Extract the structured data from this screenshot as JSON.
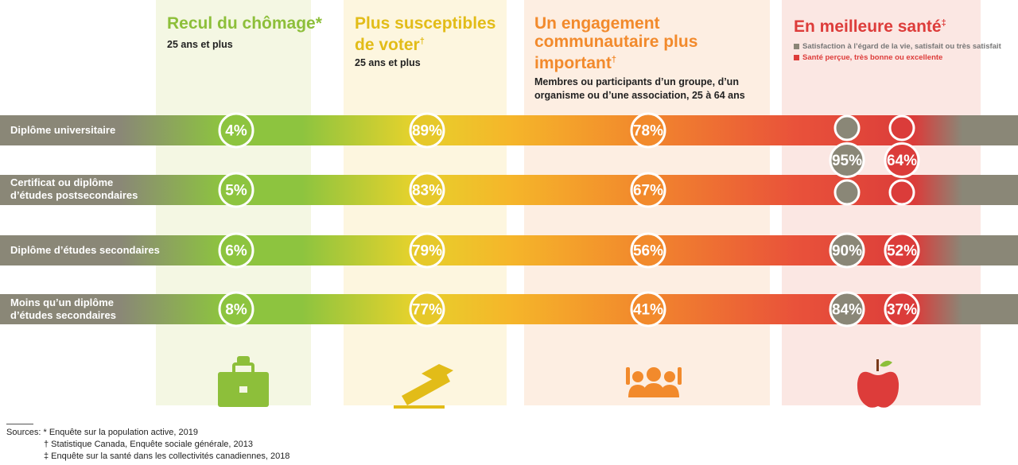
{
  "columns": [
    {
      "title": "Recul du chômage*",
      "title_mark": "",
      "subtitle": "25 ans et plus",
      "color": "#8dbf3a",
      "icon": "briefcase-icon"
    },
    {
      "title": "Plus susceptibles de voter",
      "title_mark": "†",
      "subtitle": "25 ans et plus",
      "color": "#e2bc18",
      "icon": "ballot-box-icon"
    },
    {
      "title": "Un engagement communautaire plus important",
      "title_mark": "†",
      "subtitle": "Membres ou participants d’un groupe, d’un organisme ou d’une association, 25 à 64 ans",
      "color": "#f28a2c",
      "icon": "people-hands-raised-icon"
    },
    {
      "title": "En meilleure santé",
      "title_mark": "‡",
      "subtitle": "",
      "color": "#dd3c3a",
      "icon": "apple-icon"
    }
  ],
  "legend": {
    "life_satisfaction": "Satisfaction à l’égard de la vie, satisfait ou très satisfait",
    "health": "Santé perçue, très bonne ou excellente",
    "life_color": "#8a8576",
    "health_color": "#dd3c3a"
  },
  "chart_data": {
    "type": "table",
    "categories": [
      "Diplôme universitaire",
      "Certificat ou diplôme d’études postsecondaires",
      "Diplôme d’études secondaires",
      "Moins qu’un diplôme d’études secondaires"
    ],
    "series": [
      {
        "name": "Recul du chômage",
        "values": [
          4,
          5,
          6,
          8
        ]
      },
      {
        "name": "Plus susceptibles de voter",
        "values": [
          89,
          83,
          79,
          77
        ]
      },
      {
        "name": "Un engagement communautaire plus important",
        "values": [
          78,
          67,
          56,
          41
        ]
      },
      {
        "name": "Satisfaction à l’égard de la vie, satisfait ou très satisfait",
        "values": [
          95,
          95,
          90,
          84
        ]
      },
      {
        "name": "Santé perçue, très bonne ou excellente",
        "values": [
          64,
          64,
          52,
          37
        ]
      }
    ],
    "value_labels": [
      [
        "4%",
        "89%",
        "78%",
        "95%",
        "64%"
      ],
      [
        "5%",
        "83%",
        "67%",
        "",
        ""
      ],
      [
        "6%",
        "79%",
        "56%",
        "90%",
        "52%"
      ],
      [
        "8%",
        "77%",
        "41%",
        "84%",
        "37%"
      ]
    ]
  },
  "sources": {
    "label": "Sources:",
    "lines": [
      "* Enquête sur la population active, 2019",
      "† Statistique Canada, Enquête sociale générale, 2013",
      "‡ Enquête sur la santé dans les collectivités canadiennes, 2018"
    ]
  }
}
